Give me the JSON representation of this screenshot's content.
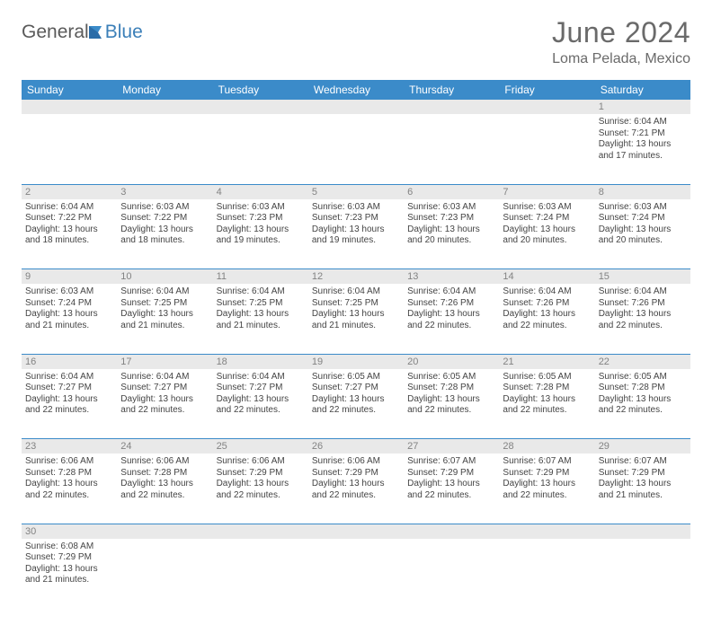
{
  "logo": {
    "general": "General",
    "blue": "Blue"
  },
  "header": {
    "month_title": "June 2024",
    "location": "Loma Pelada, Mexico"
  },
  "weekdays": [
    "Sunday",
    "Monday",
    "Tuesday",
    "Wednesday",
    "Thursday",
    "Friday",
    "Saturday"
  ],
  "colors": {
    "header_bg": "#3b8bc9",
    "header_text": "#ffffff",
    "daynum_bg": "#e9e9e9",
    "daynum_text": "#838383",
    "row_border": "#3b8bc9",
    "title_text": "#6a6a6a"
  },
  "labels": {
    "sunrise_prefix": "Sunrise: ",
    "sunset_prefix": "Sunset: ",
    "daylight_prefix": "Daylight: ",
    "hours_word": " hours",
    "and_word": "and ",
    "minutes_word": " minutes."
  },
  "days": [
    {
      "n": 1,
      "sunrise": "6:04 AM",
      "sunset": "7:21 PM",
      "dh": 13,
      "dm": 17
    },
    {
      "n": 2,
      "sunrise": "6:04 AM",
      "sunset": "7:22 PM",
      "dh": 13,
      "dm": 18
    },
    {
      "n": 3,
      "sunrise": "6:03 AM",
      "sunset": "7:22 PM",
      "dh": 13,
      "dm": 18
    },
    {
      "n": 4,
      "sunrise": "6:03 AM",
      "sunset": "7:23 PM",
      "dh": 13,
      "dm": 19
    },
    {
      "n": 5,
      "sunrise": "6:03 AM",
      "sunset": "7:23 PM",
      "dh": 13,
      "dm": 19
    },
    {
      "n": 6,
      "sunrise": "6:03 AM",
      "sunset": "7:23 PM",
      "dh": 13,
      "dm": 20
    },
    {
      "n": 7,
      "sunrise": "6:03 AM",
      "sunset": "7:24 PM",
      "dh": 13,
      "dm": 20
    },
    {
      "n": 8,
      "sunrise": "6:03 AM",
      "sunset": "7:24 PM",
      "dh": 13,
      "dm": 20
    },
    {
      "n": 9,
      "sunrise": "6:03 AM",
      "sunset": "7:24 PM",
      "dh": 13,
      "dm": 21
    },
    {
      "n": 10,
      "sunrise": "6:04 AM",
      "sunset": "7:25 PM",
      "dh": 13,
      "dm": 21
    },
    {
      "n": 11,
      "sunrise": "6:04 AM",
      "sunset": "7:25 PM",
      "dh": 13,
      "dm": 21
    },
    {
      "n": 12,
      "sunrise": "6:04 AM",
      "sunset": "7:25 PM",
      "dh": 13,
      "dm": 21
    },
    {
      "n": 13,
      "sunrise": "6:04 AM",
      "sunset": "7:26 PM",
      "dh": 13,
      "dm": 22
    },
    {
      "n": 14,
      "sunrise": "6:04 AM",
      "sunset": "7:26 PM",
      "dh": 13,
      "dm": 22
    },
    {
      "n": 15,
      "sunrise": "6:04 AM",
      "sunset": "7:26 PM",
      "dh": 13,
      "dm": 22
    },
    {
      "n": 16,
      "sunrise": "6:04 AM",
      "sunset": "7:27 PM",
      "dh": 13,
      "dm": 22
    },
    {
      "n": 17,
      "sunrise": "6:04 AM",
      "sunset": "7:27 PM",
      "dh": 13,
      "dm": 22
    },
    {
      "n": 18,
      "sunrise": "6:04 AM",
      "sunset": "7:27 PM",
      "dh": 13,
      "dm": 22
    },
    {
      "n": 19,
      "sunrise": "6:05 AM",
      "sunset": "7:27 PM",
      "dh": 13,
      "dm": 22
    },
    {
      "n": 20,
      "sunrise": "6:05 AM",
      "sunset": "7:28 PM",
      "dh": 13,
      "dm": 22
    },
    {
      "n": 21,
      "sunrise": "6:05 AM",
      "sunset": "7:28 PM",
      "dh": 13,
      "dm": 22
    },
    {
      "n": 22,
      "sunrise": "6:05 AM",
      "sunset": "7:28 PM",
      "dh": 13,
      "dm": 22
    },
    {
      "n": 23,
      "sunrise": "6:06 AM",
      "sunset": "7:28 PM",
      "dh": 13,
      "dm": 22
    },
    {
      "n": 24,
      "sunrise": "6:06 AM",
      "sunset": "7:28 PM",
      "dh": 13,
      "dm": 22
    },
    {
      "n": 25,
      "sunrise": "6:06 AM",
      "sunset": "7:29 PM",
      "dh": 13,
      "dm": 22
    },
    {
      "n": 26,
      "sunrise": "6:06 AM",
      "sunset": "7:29 PM",
      "dh": 13,
      "dm": 22
    },
    {
      "n": 27,
      "sunrise": "6:07 AM",
      "sunset": "7:29 PM",
      "dh": 13,
      "dm": 22
    },
    {
      "n": 28,
      "sunrise": "6:07 AM",
      "sunset": "7:29 PM",
      "dh": 13,
      "dm": 22
    },
    {
      "n": 29,
      "sunrise": "6:07 AM",
      "sunset": "7:29 PM",
      "dh": 13,
      "dm": 21
    },
    {
      "n": 30,
      "sunrise": "6:08 AM",
      "sunset": "7:29 PM",
      "dh": 13,
      "dm": 21
    }
  ],
  "layout": {
    "first_weekday_index": 6,
    "num_days": 30
  }
}
